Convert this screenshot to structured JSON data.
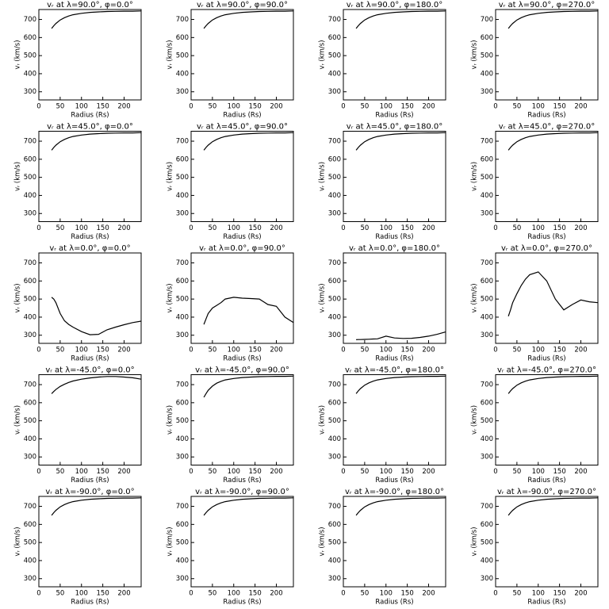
{
  "chart_data": [
    {
      "type": "line",
      "title": "vᵣ at λ=90.0°, φ=0.0°",
      "xlabel": "Radius (Rs)",
      "ylabel": "vᵣ (km/s)",
      "x": [
        30,
        35,
        40,
        50,
        60,
        70,
        80,
        100,
        120,
        140,
        160,
        180,
        200,
        220,
        240
      ],
      "values": [
        650,
        665,
        678,
        697,
        710,
        719,
        726,
        734,
        739,
        742,
        744,
        745,
        746,
        746,
        747
      ],
      "xlim": [
        0,
        240
      ],
      "ylim": [
        255,
        755
      ],
      "xticks": [
        0,
        50,
        100,
        150,
        200
      ],
      "yticks": [
        300,
        400,
        500,
        600,
        700
      ],
      "color": "#000000"
    },
    {
      "type": "line",
      "title": "vᵣ at λ=90.0°, φ=90.0°",
      "xlabel": "Radius (Rs)",
      "ylabel": "vᵣ (km/s)",
      "x": [
        30,
        35,
        40,
        50,
        60,
        70,
        80,
        100,
        120,
        140,
        160,
        180,
        200,
        220,
        240
      ],
      "values": [
        650,
        665,
        678,
        697,
        710,
        719,
        726,
        734,
        739,
        742,
        744,
        745,
        746,
        746,
        747
      ],
      "xlim": [
        0,
        240
      ],
      "ylim": [
        255,
        755
      ],
      "xticks": [
        0,
        50,
        100,
        150,
        200
      ],
      "yticks": [
        300,
        400,
        500,
        600,
        700
      ],
      "color": "#000000"
    },
    {
      "type": "line",
      "title": "vᵣ at λ=90.0°, φ=180.0°",
      "xlabel": "Radius (Rs)",
      "ylabel": "vᵣ (km/s)",
      "x": [
        30,
        35,
        40,
        50,
        60,
        70,
        80,
        100,
        120,
        140,
        160,
        180,
        200,
        220,
        240
      ],
      "values": [
        650,
        665,
        678,
        697,
        710,
        719,
        726,
        734,
        739,
        742,
        744,
        745,
        746,
        746,
        747
      ],
      "xlim": [
        0,
        240
      ],
      "ylim": [
        255,
        755
      ],
      "xticks": [
        0,
        50,
        100,
        150,
        200
      ],
      "yticks": [
        300,
        400,
        500,
        600,
        700
      ],
      "color": "#000000"
    },
    {
      "type": "line",
      "title": "vᵣ at λ=90.0°, φ=270.0°",
      "xlabel": "Radius (Rs)",
      "ylabel": "vᵣ (km/s)",
      "x": [
        30,
        35,
        40,
        50,
        60,
        70,
        80,
        100,
        120,
        140,
        160,
        180,
        200,
        220,
        240
      ],
      "values": [
        650,
        665,
        678,
        697,
        710,
        719,
        726,
        734,
        739,
        742,
        744,
        745,
        746,
        746,
        747
      ],
      "xlim": [
        0,
        240
      ],
      "ylim": [
        255,
        755
      ],
      "xticks": [
        0,
        50,
        100,
        150,
        200
      ],
      "yticks": [
        300,
        400,
        500,
        600,
        700
      ],
      "color": "#000000"
    },
    {
      "type": "line",
      "title": "vᵣ at λ=45.0°, φ=0.0°",
      "xlabel": "Radius (Rs)",
      "ylabel": "vᵣ (km/s)",
      "x": [
        30,
        35,
        40,
        50,
        60,
        70,
        80,
        100,
        120,
        140,
        160,
        180,
        200,
        220,
        240
      ],
      "values": [
        650,
        665,
        678,
        697,
        710,
        719,
        726,
        734,
        739,
        742,
        744,
        745,
        746,
        746,
        747
      ],
      "xlim": [
        0,
        240
      ],
      "ylim": [
        255,
        755
      ],
      "xticks": [
        0,
        50,
        100,
        150,
        200
      ],
      "yticks": [
        300,
        400,
        500,
        600,
        700
      ],
      "color": "#000000"
    },
    {
      "type": "line",
      "title": "vᵣ at λ=45.0°, φ=90.0°",
      "xlabel": "Radius (Rs)",
      "ylabel": "vᵣ (km/s)",
      "x": [
        30,
        35,
        40,
        50,
        60,
        70,
        80,
        100,
        120,
        140,
        160,
        180,
        200,
        220,
        240
      ],
      "values": [
        650,
        665,
        678,
        697,
        710,
        719,
        726,
        734,
        739,
        742,
        744,
        745,
        746,
        746,
        747
      ],
      "xlim": [
        0,
        240
      ],
      "ylim": [
        255,
        755
      ],
      "xticks": [
        0,
        50,
        100,
        150,
        200
      ],
      "yticks": [
        300,
        400,
        500,
        600,
        700
      ],
      "color": "#000000"
    },
    {
      "type": "line",
      "title": "vᵣ at λ=45.0°, φ=180.0°",
      "xlabel": "Radius (Rs)",
      "ylabel": "vᵣ (km/s)",
      "x": [
        30,
        35,
        40,
        50,
        60,
        70,
        80,
        100,
        120,
        140,
        160,
        180,
        200,
        220,
        240
      ],
      "values": [
        650,
        665,
        678,
        697,
        710,
        719,
        726,
        734,
        739,
        742,
        744,
        745,
        746,
        746,
        747
      ],
      "xlim": [
        0,
        240
      ],
      "ylim": [
        255,
        755
      ],
      "xticks": [
        0,
        50,
        100,
        150,
        200
      ],
      "yticks": [
        300,
        400,
        500,
        600,
        700
      ],
      "color": "#000000"
    },
    {
      "type": "line",
      "title": "vᵣ at λ=45.0°, φ=270.0°",
      "xlabel": "Radius (Rs)",
      "ylabel": "vᵣ (km/s)",
      "x": [
        30,
        35,
        40,
        50,
        60,
        70,
        80,
        100,
        120,
        140,
        160,
        180,
        200,
        220,
        240
      ],
      "values": [
        650,
        665,
        678,
        697,
        710,
        719,
        726,
        734,
        739,
        742,
        744,
        745,
        746,
        746,
        747
      ],
      "xlim": [
        0,
        240
      ],
      "ylim": [
        255,
        755
      ],
      "xticks": [
        0,
        50,
        100,
        150,
        200
      ],
      "yticks": [
        300,
        400,
        500,
        600,
        700
      ],
      "color": "#000000"
    },
    {
      "type": "line",
      "title": "vᵣ at λ=0.0°, φ=0.0°",
      "xlabel": "Radius (Rs)",
      "ylabel": "vᵣ (km/s)",
      "x": [
        30,
        35,
        40,
        50,
        60,
        70,
        80,
        100,
        120,
        140,
        160,
        180,
        200,
        220,
        240
      ],
      "values": [
        510,
        500,
        480,
        420,
        380,
        360,
        345,
        320,
        303,
        305,
        330,
        345,
        358,
        370,
        378
      ],
      "xlim": [
        0,
        240
      ],
      "ylim": [
        255,
        755
      ],
      "xticks": [
        0,
        50,
        100,
        150,
        200
      ],
      "yticks": [
        300,
        400,
        500,
        600,
        700
      ],
      "color": "#000000"
    },
    {
      "type": "line",
      "title": "vᵣ at λ=0.0°, φ=90.0°",
      "xlabel": "Radius (Rs)",
      "ylabel": "vᵣ (km/s)",
      "x": [
        30,
        35,
        40,
        50,
        60,
        70,
        80,
        100,
        120,
        140,
        160,
        180,
        200,
        220,
        240
      ],
      "values": [
        360,
        390,
        420,
        450,
        465,
        480,
        500,
        510,
        505,
        503,
        500,
        470,
        460,
        400,
        370
      ],
      "xlim": [
        0,
        240
      ],
      "ylim": [
        255,
        755
      ],
      "xticks": [
        0,
        50,
        100,
        150,
        200
      ],
      "yticks": [
        300,
        400,
        500,
        600,
        700
      ],
      "color": "#000000"
    },
    {
      "type": "line",
      "title": "vᵣ at λ=0.0°, φ=180.0°",
      "xlabel": "Radius (Rs)",
      "ylabel": "vᵣ (km/s)",
      "x": [
        30,
        35,
        40,
        50,
        60,
        70,
        80,
        100,
        120,
        140,
        160,
        180,
        200,
        220,
        240
      ],
      "values": [
        275,
        276,
        276,
        277,
        278,
        279,
        280,
        295,
        285,
        282,
        283,
        288,
        295,
        305,
        318
      ],
      "xlim": [
        0,
        240
      ],
      "ylim": [
        255,
        755
      ],
      "xticks": [
        0,
        50,
        100,
        150,
        200
      ],
      "yticks": [
        300,
        400,
        500,
        600,
        700
      ],
      "color": "#000000"
    },
    {
      "type": "line",
      "title": "vᵣ at λ=0.0°, φ=270.0°",
      "xlabel": "Radius (Rs)",
      "ylabel": "vᵣ (km/s)",
      "x": [
        30,
        35,
        40,
        50,
        60,
        70,
        80,
        100,
        120,
        140,
        160,
        180,
        200,
        220,
        240
      ],
      "values": [
        405,
        440,
        480,
        530,
        575,
        610,
        635,
        650,
        600,
        500,
        440,
        470,
        495,
        485,
        480
      ],
      "xlim": [
        0,
        240
      ],
      "ylim": [
        255,
        755
      ],
      "xticks": [
        0,
        50,
        100,
        150,
        200
      ],
      "yticks": [
        300,
        400,
        500,
        600,
        700
      ],
      "color": "#000000"
    },
    {
      "type": "line",
      "title": "vᵣ at λ=-45.0°, φ=0.0°",
      "xlabel": "Radius (Rs)",
      "ylabel": "vᵣ (km/s)",
      "x": [
        30,
        35,
        40,
        50,
        60,
        70,
        80,
        100,
        120,
        140,
        160,
        180,
        200,
        220,
        240
      ],
      "values": [
        650,
        662,
        673,
        690,
        702,
        712,
        720,
        730,
        737,
        742,
        745,
        745,
        742,
        738,
        730
      ],
      "xlim": [
        0,
        240
      ],
      "ylim": [
        255,
        755
      ],
      "xticks": [
        0,
        50,
        100,
        150,
        200
      ],
      "yticks": [
        300,
        400,
        500,
        600,
        700
      ],
      "color": "#000000"
    },
    {
      "type": "line",
      "title": "vᵣ at λ=-45.0°, φ=90.0°",
      "xlabel": "Radius (Rs)",
      "ylabel": "vᵣ (km/s)",
      "x": [
        30,
        35,
        40,
        50,
        60,
        70,
        80,
        100,
        120,
        140,
        160,
        180,
        200,
        220,
        240
      ],
      "values": [
        630,
        650,
        668,
        692,
        708,
        718,
        726,
        734,
        739,
        742,
        744,
        745,
        746,
        746,
        747
      ],
      "xlim": [
        0,
        240
      ],
      "ylim": [
        255,
        755
      ],
      "xticks": [
        0,
        50,
        100,
        150,
        200
      ],
      "yticks": [
        300,
        400,
        500,
        600,
        700
      ],
      "color": "#000000"
    },
    {
      "type": "line",
      "title": "vᵣ at λ=-45.0°, φ=180.0°",
      "xlabel": "Radius (Rs)",
      "ylabel": "vᵣ (km/s)",
      "x": [
        30,
        35,
        40,
        50,
        60,
        70,
        80,
        100,
        120,
        140,
        160,
        180,
        200,
        220,
        240
      ],
      "values": [
        650,
        665,
        678,
        697,
        710,
        719,
        726,
        734,
        739,
        742,
        744,
        745,
        746,
        746,
        747
      ],
      "xlim": [
        0,
        240
      ],
      "ylim": [
        255,
        755
      ],
      "xticks": [
        0,
        50,
        100,
        150,
        200
      ],
      "yticks": [
        300,
        400,
        500,
        600,
        700
      ],
      "color": "#000000"
    },
    {
      "type": "line",
      "title": "vᵣ at λ=-45.0°, φ=270.0°",
      "xlabel": "Radius (Rs)",
      "ylabel": "vᵣ (km/s)",
      "x": [
        30,
        35,
        40,
        50,
        60,
        70,
        80,
        100,
        120,
        140,
        160,
        180,
        200,
        220,
        240
      ],
      "values": [
        650,
        665,
        678,
        697,
        710,
        719,
        726,
        734,
        739,
        742,
        744,
        745,
        746,
        746,
        747
      ],
      "xlim": [
        0,
        240
      ],
      "ylim": [
        255,
        755
      ],
      "xticks": [
        0,
        50,
        100,
        150,
        200
      ],
      "yticks": [
        300,
        400,
        500,
        600,
        700
      ],
      "color": "#000000"
    },
    {
      "type": "line",
      "title": "vᵣ at λ=-90.0°, φ=0.0°",
      "xlabel": "Radius (Rs)",
      "ylabel": "vᵣ (km/s)",
      "x": [
        30,
        35,
        40,
        50,
        60,
        70,
        80,
        100,
        120,
        140,
        160,
        180,
        200,
        220,
        240
      ],
      "values": [
        650,
        665,
        678,
        697,
        710,
        719,
        726,
        734,
        739,
        742,
        744,
        745,
        746,
        746,
        747
      ],
      "xlim": [
        0,
        240
      ],
      "ylim": [
        255,
        755
      ],
      "xticks": [
        0,
        50,
        100,
        150,
        200
      ],
      "yticks": [
        300,
        400,
        500,
        600,
        700
      ],
      "color": "#000000"
    },
    {
      "type": "line",
      "title": "vᵣ at λ=-90.0°, φ=90.0°",
      "xlabel": "Radius (Rs)",
      "ylabel": "vᵣ (km/s)",
      "x": [
        30,
        35,
        40,
        50,
        60,
        70,
        80,
        100,
        120,
        140,
        160,
        180,
        200,
        220,
        240
      ],
      "values": [
        650,
        665,
        678,
        697,
        710,
        719,
        726,
        734,
        739,
        742,
        744,
        745,
        746,
        746,
        747
      ],
      "xlim": [
        0,
        240
      ],
      "ylim": [
        255,
        755
      ],
      "xticks": [
        0,
        50,
        100,
        150,
        200
      ],
      "yticks": [
        300,
        400,
        500,
        600,
        700
      ],
      "color": "#000000"
    },
    {
      "type": "line",
      "title": "vᵣ at λ=-90.0°, φ=180.0°",
      "xlabel": "Radius (Rs)",
      "ylabel": "vᵣ (km/s)",
      "x": [
        30,
        35,
        40,
        50,
        60,
        70,
        80,
        100,
        120,
        140,
        160,
        180,
        200,
        220,
        240
      ],
      "values": [
        650,
        665,
        678,
        697,
        710,
        719,
        726,
        734,
        739,
        742,
        744,
        745,
        746,
        746,
        747
      ],
      "xlim": [
        0,
        240
      ],
      "ylim": [
        255,
        755
      ],
      "xticks": [
        0,
        50,
        100,
        150,
        200
      ],
      "yticks": [
        300,
        400,
        500,
        600,
        700
      ],
      "color": "#000000"
    },
    {
      "type": "line",
      "title": "vᵣ at λ=-90.0°, φ=270.0°",
      "xlabel": "Radius (Rs)",
      "ylabel": "vᵣ (km/s)",
      "x": [
        30,
        35,
        40,
        50,
        60,
        70,
        80,
        100,
        120,
        140,
        160,
        180,
        200,
        220,
        240
      ],
      "values": [
        650,
        665,
        678,
        697,
        710,
        719,
        726,
        734,
        739,
        742,
        744,
        745,
        746,
        746,
        747
      ],
      "xlim": [
        0,
        240
      ],
      "ylim": [
        255,
        755
      ],
      "xticks": [
        0,
        50,
        100,
        150,
        200
      ],
      "yticks": [
        300,
        400,
        500,
        600,
        700
      ],
      "color": "#000000"
    }
  ]
}
